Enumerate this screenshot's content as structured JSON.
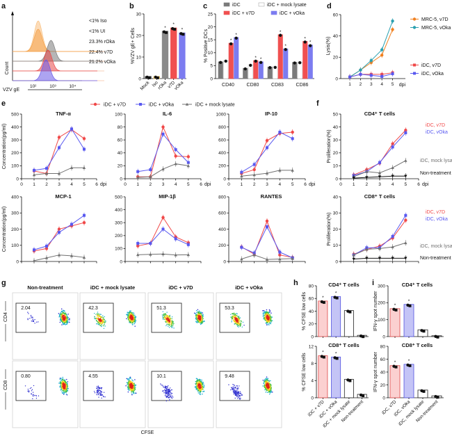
{
  "panel_labels": {
    "a": "a",
    "b": "b",
    "c": "c",
    "d": "d",
    "e": "e",
    "f": "f",
    "g": "g",
    "h": "h",
    "i": "i"
  },
  "chart_data": {
    "a": {
      "type": "histogram",
      "xlabel": "VZV gE",
      "ylabel": "Count",
      "xticks": [
        "10²",
        "10³",
        "10⁴"
      ],
      "series": [
        {
          "name": "Iso",
          "label": "<1% Iso",
          "color": "#f9c080",
          "peak_log10": 2.15
        },
        {
          "name": "UI",
          "label": "<1% UI",
          "color": "#f4a24a",
          "peak_log10": 2.15
        },
        {
          "name": "rOka",
          "label": "23.3% rOka",
          "color": "#7a7a7a",
          "peak_log10": 2.8
        },
        {
          "name": "v7D",
          "label": "22.4% v7D",
          "color": "#e84848",
          "peak_log10": 2.65
        },
        {
          "name": "vOka",
          "label": "21.2% vOka",
          "color": "#6a5ae8",
          "peak_log10": 2.55
        }
      ]
    },
    "b": {
      "type": "bar",
      "ylabel": "%VZV gE+ Cells",
      "ylim": [
        0,
        30
      ],
      "yticks": [
        "0",
        "10",
        "20",
        "30"
      ],
      "categories": [
        "Mock",
        "Iso",
        "rOka",
        "v7D",
        "vOka"
      ],
      "values": [
        1,
        1,
        22,
        23.5,
        21.2
      ],
      "colors": [
        "#444444",
        "#e8c060",
        "#8a8a8a",
        "#f05050",
        "#7c7cf0"
      ],
      "significance": [
        "",
        "",
        "*",
        "*",
        "*"
      ]
    },
    "c": {
      "type": "bar",
      "ylabel": "% Positive DCs",
      "ylim": [
        0,
        25
      ],
      "yticks": [
        "0",
        "5",
        "10",
        "15",
        "20",
        "25"
      ],
      "categories": [
        "CD40",
        "CD80",
        "CD83",
        "CD86"
      ],
      "series": [
        {
          "name": "iDC",
          "values": [
            6.5,
            4.0,
            4.5,
            6.3
          ],
          "color": "#7a7a7a"
        },
        {
          "name": "iDC + mock lysate",
          "values": [
            7.0,
            5.4,
            4.6,
            6.4
          ],
          "color": "#ffffff"
        },
        {
          "name": "iDC + v7D",
          "values": [
            13.7,
            7.0,
            17.0,
            14.4
          ],
          "color": "#f05050"
        },
        {
          "name": "iDC + vOka",
          "values": [
            15.9,
            6.5,
            11.5,
            13.0
          ],
          "color": "#7c7cf0"
        }
      ],
      "significance": "*"
    },
    "d": {
      "type": "line",
      "ylabel": "Lysis(%)",
      "xlabel": "dpi",
      "x": [
        1,
        2,
        3,
        4,
        5
      ],
      "xticks": [
        "1",
        "2",
        "3",
        "4",
        "5"
      ],
      "ylim": [
        0,
        60
      ],
      "yticks": [
        "0",
        "20",
        "40",
        "60"
      ],
      "series": [
        {
          "name": "MRC-5, v7D",
          "values": [
            1.5,
            8,
            15,
            22,
            46
          ],
          "color": "#f08020",
          "marker": "circle"
        },
        {
          "name": "MRC-5, vOka",
          "values": [
            1.5,
            8,
            17,
            27,
            54
          ],
          "color": "#2aa0b0",
          "marker": "circle"
        },
        {
          "name": "iDC, v7D",
          "values": [
            1.5,
            4,
            4,
            4,
            5.5
          ],
          "color": "#f04848",
          "marker": "square"
        },
        {
          "name": "iDC, vOka",
          "values": [
            1.5,
            4,
            3,
            2,
            4.5
          ],
          "color": "#5858f0",
          "marker": "square"
        }
      ]
    },
    "e": {
      "legend": [
        "iDC + v7D",
        "iDC + vOka",
        "iDC + mock lysate"
      ],
      "colors": [
        "#f04848",
        "#5858f0",
        "#707070"
      ],
      "ylabel": "Concentration(pg/ml)",
      "xlabel": "dpi",
      "x": [
        1,
        2,
        3,
        4,
        5
      ],
      "xticks": [
        "0",
        "1",
        "2",
        "3",
        "4",
        "5",
        "6"
      ],
      "panels": [
        {
          "type": "line",
          "title": "TNF-α",
          "ylim": [
            0,
            500
          ],
          "yticks": [
            "0",
            "100",
            "200",
            "300",
            "400",
            "500"
          ],
          "series": [
            [
              60,
              40,
              320,
              380,
              310
            ],
            [
              65,
              80,
              240,
              385,
              228
            ],
            [
              30,
              40,
              40,
              85,
              85
            ]
          ]
        },
        {
          "type": "line",
          "title": "IL-6",
          "ylim": [
            0,
            100
          ],
          "yticks": [
            "0",
            "20",
            "40",
            "60",
            "80",
            "100"
          ],
          "series": [
            [
              3,
              3,
              80,
              35,
              34
            ],
            [
              11,
              14,
              69,
              45,
              25
            ],
            [
              2,
              3,
              15,
              23,
              20
            ]
          ]
        },
        {
          "type": "line",
          "title": "IP-10",
          "ylim": [
            0,
            1000
          ],
          "yticks": [
            "0",
            "200",
            "400",
            "600",
            "800",
            "1000"
          ],
          "series": [
            [
              80,
              140,
              590,
              700,
              720
            ],
            [
              100,
              220,
              480,
              720,
              620
            ],
            [
              40,
              60,
              85,
              130,
              130
            ]
          ]
        },
        {
          "type": "line",
          "title": "MCP-1",
          "ylim": [
            0,
            400
          ],
          "yticks": [
            "0",
            "100",
            "200",
            "300",
            "400"
          ],
          "series": [
            [
              65,
              80,
              200,
              220,
              240
            ],
            [
              72,
              95,
              180,
              230,
              285
            ],
            [
              5,
              22,
              40,
              35,
              25
            ]
          ]
        },
        {
          "type": "line",
          "title": "MIP-1β",
          "ylim": [
            0,
            500
          ],
          "yticks": [
            "0",
            "100",
            "200",
            "300",
            "400",
            "500"
          ],
          "series": [
            [
              120,
              140,
              340,
              190,
              145
            ],
            [
              140,
              140,
              250,
              175,
              130
            ],
            [
              52,
              55,
              58,
              50,
              52
            ]
          ]
        },
        {
          "type": "line",
          "title": "RANTES",
          "ylim": [
            0,
            800
          ],
          "yticks": [
            "0",
            "200",
            "400",
            "600",
            "800"
          ],
          "series": [
            [
              180,
              90,
              500,
              80,
              50
            ],
            [
              175,
              105,
              430,
              115,
              45
            ],
            [
              30,
              80,
              25,
              30,
              35
            ]
          ]
        }
      ]
    },
    "f": {
      "ylabel": "Proliferation(%)",
      "xlabel": "dpi",
      "x": [
        1,
        2,
        3,
        4,
        5
      ],
      "xticks": [
        "0",
        "1",
        "2",
        "3",
        "4",
        "5",
        "6"
      ],
      "series_names": [
        "iDC, v7D",
        "iDC, vOka",
        "iDC, mock lysate",
        "Non-treatment"
      ],
      "colors": [
        "#f04848",
        "#5858f0",
        "#707070",
        "#111111"
      ],
      "panels": [
        {
          "type": "line",
          "title": "CD4⁺ T cells",
          "ylim": [
            0,
            50
          ],
          "yticks": [
            "0",
            "10",
            "20",
            "30",
            "40",
            "50"
          ],
          "series": [
            [
              3,
              7,
              12,
              27,
              37.5
            ],
            [
              2.5,
              5.5,
              12.5,
              24.5,
              35.5
            ],
            [
              1.5,
              5.5,
              4.5,
              8.5,
              14
            ],
            [
              0.5,
              1,
              1.5,
              2,
              2
            ]
          ]
        },
        {
          "type": "line",
          "title": "CD8⁺ T cells",
          "ylim": [
            0,
            40
          ],
          "yticks": [
            "0",
            "10",
            "20",
            "30",
            "40"
          ],
          "series": [
            [
              4.5,
              7.5,
              9.5,
              14.5,
              25.5
            ],
            [
              4,
              8.5,
              8.5,
              15.5,
              28.5
            ],
            [
              4,
              7.5,
              8,
              9,
              11.5
            ],
            [
              1.5,
              2,
              2,
              2,
              2
            ]
          ]
        }
      ]
    },
    "g": {
      "type": "scatter",
      "columns": [
        "Non-treatment",
        "iDC + mock lysate",
        "iDC + v7D",
        "iDC + vOka"
      ],
      "rows": [
        "CD4",
        "CD8"
      ],
      "gate_values": [
        [
          "2.04",
          "42.3",
          "51.3",
          "53.3"
        ],
        [
          "0.80",
          "4.55",
          "10.1",
          "9.48"
        ]
      ],
      "xlabel": "CFSE"
    },
    "h": {
      "type": "bar",
      "ylabel": "% CFSE low cells",
      "categories": [
        "iDC + v7D",
        "iDC + vOka",
        "iDC + mock lysate",
        "Non-treatment"
      ],
      "colors": [
        "#fbd0d0",
        "#c4c4f6",
        "#ffffff",
        "#ffffff"
      ],
      "edges": [
        "#e04848",
        "#5050e0",
        "#222222",
        "#222222"
      ],
      "panels": [
        {
          "title": "CD4⁺ T cells",
          "ylim": [
            0,
            80
          ],
          "yticks": [
            "0",
            "20",
            "40",
            "60",
            "80"
          ],
          "values": [
            56,
            63,
            41,
            2
          ],
          "significance": [
            "*",
            "*",
            "",
            ""
          ]
        },
        {
          "title": "CD8⁺ T cells",
          "ylim": [
            0,
            12
          ],
          "yticks": [
            "0",
            "4",
            "8",
            "12"
          ],
          "values": [
            9.8,
            9.5,
            4.3,
            0.8
          ],
          "significance": [
            "*",
            "*",
            "",
            ""
          ]
        }
      ]
    },
    "i": {
      "type": "bar",
      "ylabel": "IFN-γ spot number",
      "categories": [
        "iDC, v7D",
        "iDC, vOka",
        "iDC, mock lysate",
        "Non-treatment"
      ],
      "colors": [
        "#fbd0d0",
        "#c4c4f6",
        "#ffffff",
        "#ffffff"
      ],
      "edges": [
        "#e04848",
        "#5050e0",
        "#222222",
        "#222222"
      ],
      "panels": [
        {
          "title": "CD4⁺ T cells",
          "ylim": [
            0,
            300
          ],
          "yticks": [
            "0",
            "100",
            "200",
            "300"
          ],
          "values": [
            165,
            190,
            40,
            5
          ],
          "significance": [
            "*",
            "*",
            "",
            ""
          ]
        },
        {
          "title": "CD8⁺ T cells",
          "ylim": [
            0,
            80
          ],
          "yticks": [
            "0",
            "20",
            "40",
            "60",
            "80"
          ],
          "values": [
            50,
            52,
            12,
            3
          ],
          "significance": [
            "*",
            "*",
            "",
            ""
          ]
        }
      ]
    }
  }
}
